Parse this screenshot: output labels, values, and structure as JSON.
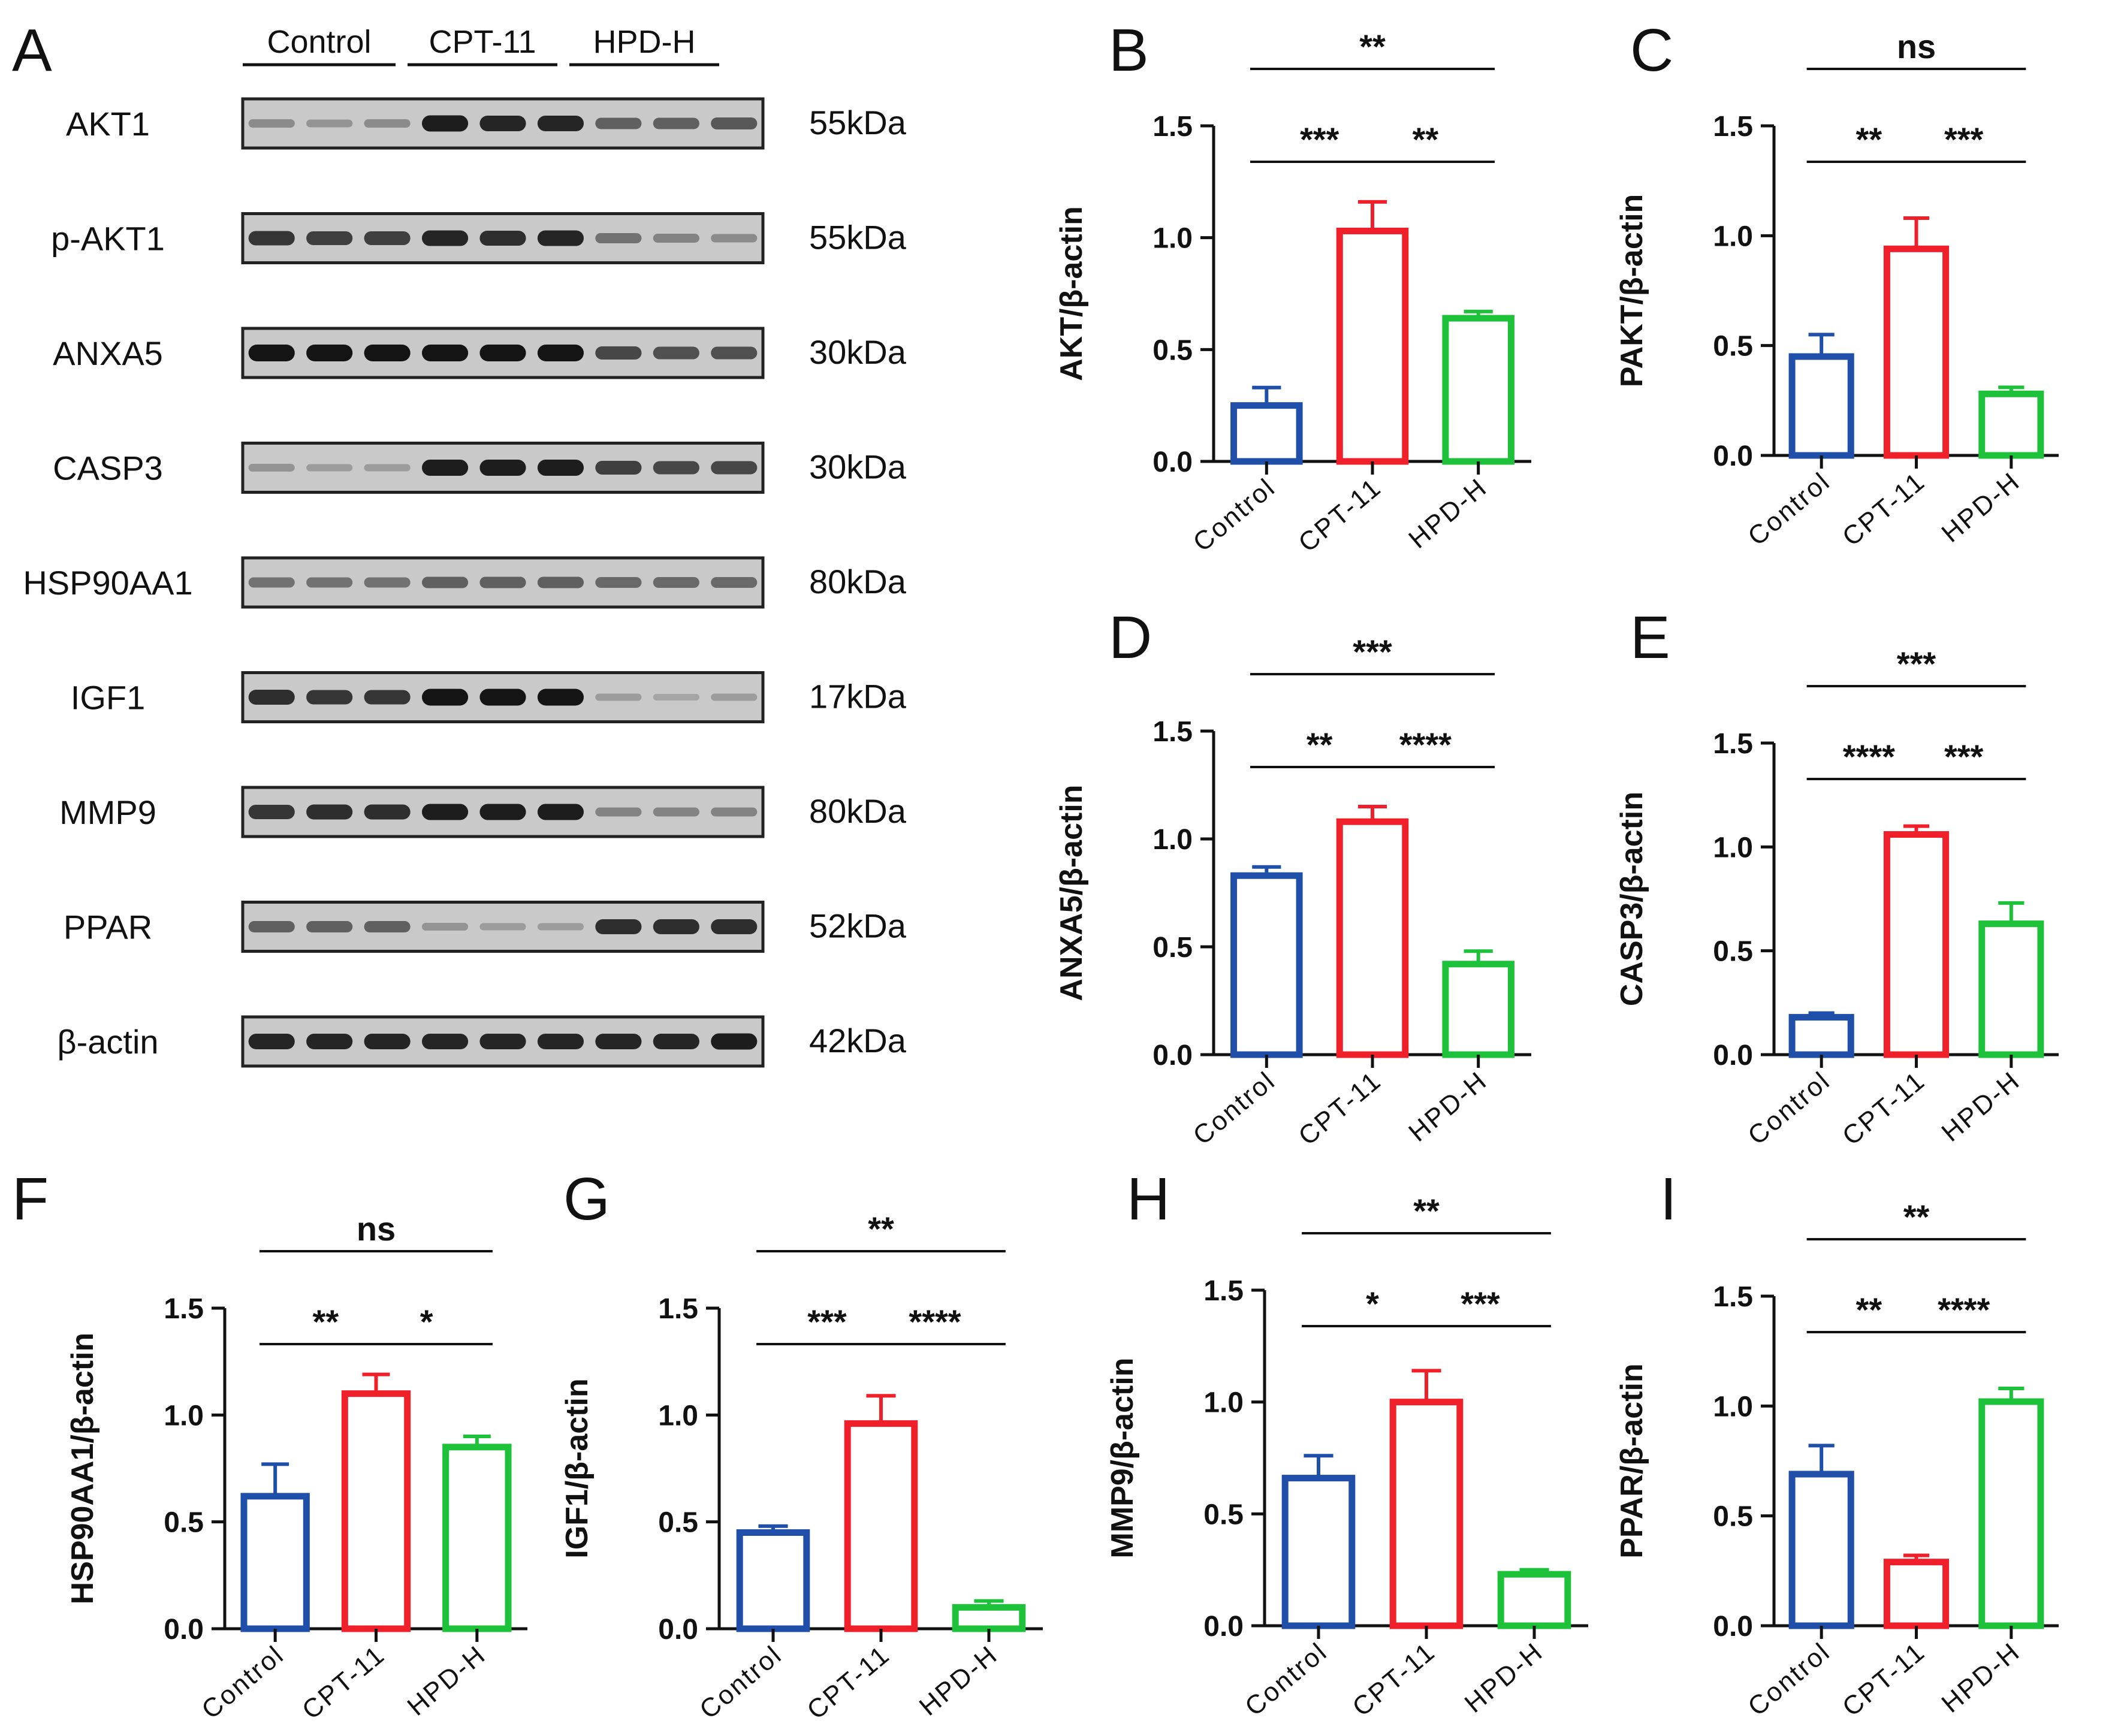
{
  "figure": {
    "wb": {
      "panel_label": "A",
      "groups": [
        "Control",
        "CPT-11",
        "HPD-H"
      ],
      "rows": [
        {
          "protein": "AKT1",
          "size": "55kDa",
          "bands": [
            0.3,
            0.25,
            0.3,
            0.95,
            0.9,
            0.9,
            0.55,
            0.55,
            0.6
          ]
        },
        {
          "protein": "p-AKT1",
          "size": "55kDa",
          "bands": [
            0.8,
            0.75,
            0.75,
            0.9,
            0.85,
            0.9,
            0.45,
            0.35,
            0.3
          ]
        },
        {
          "protein": "ANXA5",
          "size": "30kDa",
          "bands": [
            1.0,
            1.0,
            1.0,
            1.0,
            1.0,
            1.0,
            0.7,
            0.65,
            0.65
          ]
        },
        {
          "protein": "CASP3",
          "size": "30kDa",
          "bands": [
            0.25,
            0.2,
            0.2,
            0.95,
            0.95,
            0.95,
            0.75,
            0.7,
            0.7
          ]
        },
        {
          "protein": "HSP90AA1",
          "size": "80kDa",
          "bands": [
            0.45,
            0.45,
            0.45,
            0.55,
            0.55,
            0.55,
            0.5,
            0.5,
            0.5
          ]
        },
        {
          "protein": "IGF1",
          "size": "17kDa",
          "bands": [
            0.85,
            0.8,
            0.8,
            1.0,
            1.0,
            1.0,
            0.2,
            0.15,
            0.2
          ]
        },
        {
          "protein": "MMP9",
          "size": "80kDa",
          "bands": [
            0.8,
            0.85,
            0.85,
            0.95,
            0.95,
            0.95,
            0.35,
            0.35,
            0.35
          ]
        },
        {
          "protein": "PPAR",
          "size": "52kDa",
          "bands": [
            0.55,
            0.55,
            0.55,
            0.25,
            0.2,
            0.2,
            0.85,
            0.85,
            0.85
          ]
        },
        {
          "protein": "β-actin",
          "size": "42kDa",
          "bands": [
            0.9,
            0.9,
            0.9,
            0.9,
            0.9,
            0.9,
            0.9,
            0.9,
            0.95
          ]
        }
      ]
    },
    "colors": {
      "Control": "#1f4fa8",
      "CPT-11": "#f0202a",
      "HPD-H": "#1ec23a"
    }
  },
  "chart_data": [
    {
      "type": "bar",
      "panel": "B",
      "ylabel": "AKT/β-actin",
      "categories": [
        "Control",
        "CPT-11",
        "HPD-H"
      ],
      "values": [
        0.25,
        1.03,
        0.64
      ],
      "errors": [
        0.08,
        0.13,
        0.03
      ],
      "ylim": [
        0,
        1.5
      ],
      "yticks": [
        "0.0",
        "0.5",
        "1.0",
        "1.5"
      ],
      "significance": [
        {
          "from": 0,
          "to": 2,
          "label": "**"
        },
        {
          "from": 0,
          "to": 1,
          "label": "***"
        },
        {
          "from": 1,
          "to": 2,
          "label": "**"
        }
      ]
    },
    {
      "type": "bar",
      "panel": "C",
      "ylabel": "PAKT/β-actin",
      "categories": [
        "Control",
        "CPT-11",
        "HPD-H"
      ],
      "values": [
        0.45,
        0.94,
        0.28
      ],
      "errors": [
        0.1,
        0.14,
        0.03
      ],
      "ylim": [
        0,
        1.5
      ],
      "yticks": [
        "0.0",
        "0.5",
        "1.0",
        "1.5"
      ],
      "significance": [
        {
          "from": 0,
          "to": 2,
          "label": "ns"
        },
        {
          "from": 0,
          "to": 1,
          "label": "**"
        },
        {
          "from": 1,
          "to": 2,
          "label": "***"
        }
      ]
    },
    {
      "type": "bar",
      "panel": "D",
      "ylabel": "ANXA5/β-actin",
      "categories": [
        "Control",
        "CPT-11",
        "HPD-H"
      ],
      "values": [
        0.83,
        1.08,
        0.42
      ],
      "errors": [
        0.04,
        0.07,
        0.06
      ],
      "ylim": [
        0,
        1.5
      ],
      "yticks": [
        "0.0",
        "0.5",
        "1.0",
        "1.5"
      ],
      "significance": [
        {
          "from": 0,
          "to": 2,
          "label": "***"
        },
        {
          "from": 0,
          "to": 1,
          "label": "**"
        },
        {
          "from": 1,
          "to": 2,
          "label": "****"
        }
      ]
    },
    {
      "type": "bar",
      "panel": "E",
      "ylabel": "CASP3/β-actin",
      "categories": [
        "Control",
        "CPT-11",
        "HPD-H"
      ],
      "values": [
        0.18,
        1.06,
        0.63
      ],
      "errors": [
        0.02,
        0.04,
        0.1
      ],
      "ylim": [
        0,
        1.5
      ],
      "yticks": [
        "0.0",
        "0.5",
        "1.0",
        "1.5"
      ],
      "significance": [
        {
          "from": 0,
          "to": 2,
          "label": "***"
        },
        {
          "from": 0,
          "to": 1,
          "label": "****"
        },
        {
          "from": 1,
          "to": 2,
          "label": "***"
        }
      ]
    },
    {
      "type": "bar",
      "panel": "F",
      "ylabel": "HSP90AA1/β-actin",
      "categories": [
        "Control",
        "CPT-11",
        "HPD-H"
      ],
      "values": [
        0.62,
        1.1,
        0.85
      ],
      "errors": [
        0.15,
        0.09,
        0.05
      ],
      "ylim": [
        0,
        1.5
      ],
      "yticks": [
        "0.0",
        "0.5",
        "1.0",
        "1.5"
      ],
      "significance": [
        {
          "from": 0,
          "to": 2,
          "label": "ns"
        },
        {
          "from": 0,
          "to": 1,
          "label": "**"
        },
        {
          "from": 1,
          "to": 2,
          "label": "*"
        }
      ]
    },
    {
      "type": "bar",
      "panel": "G",
      "ylabel": "IGF1/β-actin",
      "categories": [
        "Control",
        "CPT-11",
        "HPD-H"
      ],
      "values": [
        0.45,
        0.96,
        0.1
      ],
      "errors": [
        0.03,
        0.13,
        0.03
      ],
      "ylim": [
        0,
        1.5
      ],
      "yticks": [
        "0.0",
        "0.5",
        "1.0",
        "1.5"
      ],
      "significance": [
        {
          "from": 0,
          "to": 2,
          "label": "**"
        },
        {
          "from": 0,
          "to": 1,
          "label": "***"
        },
        {
          "from": 1,
          "to": 2,
          "label": "****"
        }
      ]
    },
    {
      "type": "bar",
      "panel": "H",
      "ylabel": "MMP9/β-actin",
      "categories": [
        "Control",
        "CPT-11",
        "HPD-H"
      ],
      "values": [
        0.66,
        1.0,
        0.23
      ],
      "errors": [
        0.1,
        0.14,
        0.02
      ],
      "ylim": [
        0,
        1.5
      ],
      "yticks": [
        "0.0",
        "0.5",
        "1.0",
        "1.5"
      ],
      "significance": [
        {
          "from": 0,
          "to": 2,
          "label": "**"
        },
        {
          "from": 0,
          "to": 1,
          "label": "*"
        },
        {
          "from": 1,
          "to": 2,
          "label": "***"
        }
      ]
    },
    {
      "type": "bar",
      "panel": "I",
      "ylabel": "PPAR/β-actin",
      "categories": [
        "Control",
        "CPT-11",
        "HPD-H"
      ],
      "values": [
        0.69,
        0.29,
        1.02
      ],
      "errors": [
        0.13,
        0.03,
        0.06
      ],
      "ylim": [
        0,
        1.5
      ],
      "yticks": [
        "0.0",
        "0.5",
        "1.0",
        "1.5"
      ],
      "significance": [
        {
          "from": 0,
          "to": 2,
          "label": "**"
        },
        {
          "from": 0,
          "to": 1,
          "label": "**"
        },
        {
          "from": 1,
          "to": 2,
          "label": "****"
        }
      ]
    }
  ]
}
